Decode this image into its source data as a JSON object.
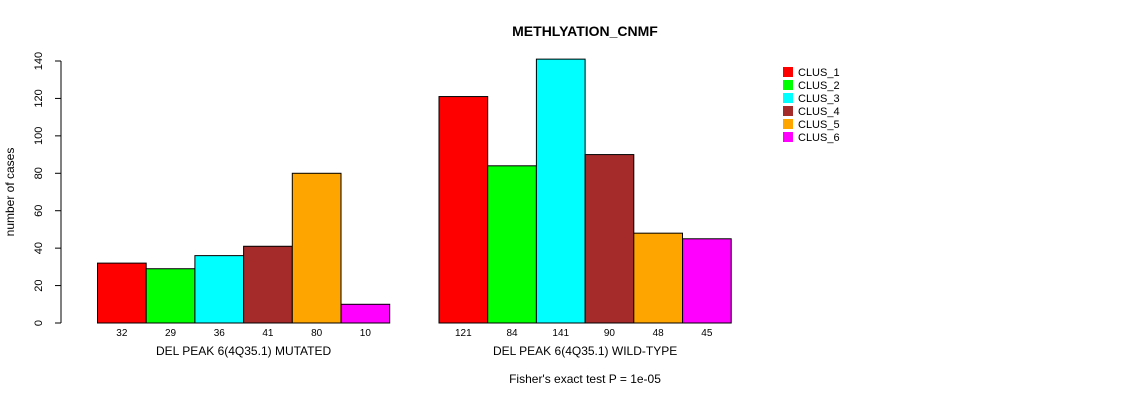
{
  "chart_data": {
    "type": "bar",
    "title": "METHLYATION_CNMF",
    "ylabel": "number of cases",
    "footnote": "Fisher's exact test P = 1e-05",
    "ylim": [
      0,
      140
    ],
    "yticks": [
      0,
      20,
      40,
      60,
      80,
      100,
      120,
      140
    ],
    "groups": [
      {
        "label": "DEL PEAK  6(4Q35.1) MUTATED",
        "values": [
          32,
          29,
          36,
          41,
          80,
          10
        ]
      },
      {
        "label": "DEL PEAK  6(4Q35.1) WILD-TYPE",
        "values": [
          121,
          84,
          141,
          90,
          48,
          45
        ]
      }
    ],
    "series": [
      {
        "name": "CLUS_1",
        "color": "#ff0000"
      },
      {
        "name": "CLUS_2",
        "color": "#00ff00"
      },
      {
        "name": "CLUS_3",
        "color": "#00ffff"
      },
      {
        "name": "CLUS_4",
        "color": "#a52a2a"
      },
      {
        "name": "CLUS_5",
        "color": "#ffa500"
      },
      {
        "name": "CLUS_6",
        "color": "#ff00ff"
      }
    ],
    "legend_position": "top-right",
    "grid": false
  }
}
